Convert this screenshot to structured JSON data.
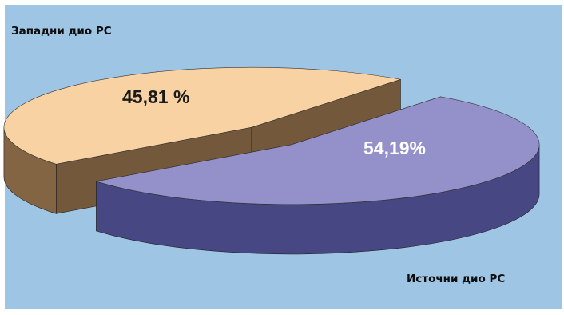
{
  "chart_data": {
    "type": "pie",
    "title": "",
    "slices": [
      {
        "label": "Западни дио РС",
        "value": 45.81,
        "value_label": "45,81 %",
        "color": "#f9d2a3",
        "side_color": "#836443",
        "value_label_color": "#1a1a1a"
      },
      {
        "label": "Источни дио РС",
        "value": 54.19,
        "value_label": "54,19%",
        "color": "#9490c9",
        "side_color": "#464783",
        "value_label_color": "#ffffff"
      }
    ],
    "style": "3d-exploded",
    "background_color": "#9fc5e5"
  }
}
